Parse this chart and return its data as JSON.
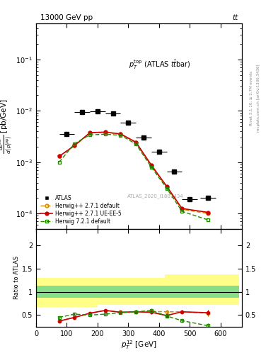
{
  "title_top": "13000 GeV pp",
  "title_right": "tt",
  "annotation": "ATLAS_2020_I1801434",
  "atlas_x": [
    100,
    150,
    200,
    250,
    300,
    350,
    400,
    450,
    500,
    560
  ],
  "atlas_y": [
    0.0035,
    0.0095,
    0.0098,
    0.0088,
    0.0058,
    0.003,
    0.0016,
    0.00065,
    0.00019,
    0.0002
  ],
  "atlas_xerr": [
    25,
    25,
    25,
    25,
    25,
    25,
    25,
    25,
    25,
    25
  ],
  "hw271_default_x": [
    75,
    125,
    175,
    225,
    275,
    325,
    375,
    425,
    475,
    560
  ],
  "hw271_default_y": [
    0.0013,
    0.0021,
    0.0037,
    0.0038,
    0.0035,
    0.0024,
    0.00085,
    0.00033,
    0.00012,
    0.0001
  ],
  "hw271_uee5_x": [
    75,
    125,
    175,
    225,
    275,
    325,
    375,
    425,
    475,
    560
  ],
  "hw271_uee5_y": [
    0.0013,
    0.0021,
    0.00375,
    0.00385,
    0.00355,
    0.00245,
    0.00088,
    0.00034,
    0.000125,
    0.000105
  ],
  "hw721_default_x": [
    75,
    125,
    175,
    225,
    275,
    325,
    375,
    425,
    475,
    560
  ],
  "hw721_default_y": [
    0.001,
    0.0023,
    0.0034,
    0.0035,
    0.00335,
    0.00225,
    0.0008,
    0.00031,
    0.00011,
    7.5e-05
  ],
  "ratio_hw271_default_x": [
    75,
    125,
    175,
    225,
    275,
    325,
    375,
    425,
    475,
    560
  ],
  "ratio_hw271_default_y": [
    0.37,
    0.45,
    0.53,
    0.6,
    0.56,
    0.57,
    0.58,
    0.57,
    0.57,
    0.54
  ],
  "ratio_hw271_default_yerr": [
    0.03,
    0.03,
    0.03,
    0.03,
    0.03,
    0.04,
    0.04,
    0.04,
    0.04,
    0.06
  ],
  "ratio_hw271_uee5_x": [
    75,
    125,
    175,
    225,
    275,
    325,
    375,
    425,
    475,
    560
  ],
  "ratio_hw271_uee5_y": [
    0.37,
    0.45,
    0.54,
    0.6,
    0.56,
    0.57,
    0.56,
    0.49,
    0.57,
    0.55
  ],
  "ratio_hw271_uee5_yerr": [
    0.03,
    0.03,
    0.03,
    0.03,
    0.03,
    0.04,
    0.04,
    0.04,
    0.04,
    0.06
  ],
  "ratio_hw721_default_x": [
    75,
    125,
    175,
    225,
    275,
    325,
    375,
    425,
    475,
    560
  ],
  "ratio_hw721_default_y": [
    0.45,
    0.52,
    0.5,
    0.52,
    0.55,
    0.57,
    0.6,
    0.48,
    0.38,
    0.27
  ],
  "ratio_hw721_default_yerr": [
    0.03,
    0.03,
    0.03,
    0.03,
    0.03,
    0.04,
    0.04,
    0.04,
    0.04,
    0.05
  ],
  "band_x": [
    0,
    200,
    200,
    420,
    420,
    660
  ],
  "band_yellow_low": [
    0.67,
    0.67,
    0.72,
    0.72,
    0.72,
    0.72
  ],
  "band_yellow_high": [
    1.3,
    1.3,
    1.3,
    1.3,
    1.38,
    1.38
  ],
  "band_green_low": [
    0.87,
    0.87,
    0.87,
    0.87,
    0.87,
    0.87
  ],
  "band_green_high": [
    1.13,
    1.13,
    1.13,
    1.13,
    1.13,
    1.13
  ],
  "color_atlas": "#000000",
  "color_hw271_default": "#cc8800",
  "color_hw271_uee5": "#cc0000",
  "color_hw721_default": "#228800",
  "ylim_main": [
    5e-05,
    0.5
  ],
  "ylim_ratio": [
    0.25,
    2.35
  ],
  "xlim": [
    0,
    670
  ]
}
